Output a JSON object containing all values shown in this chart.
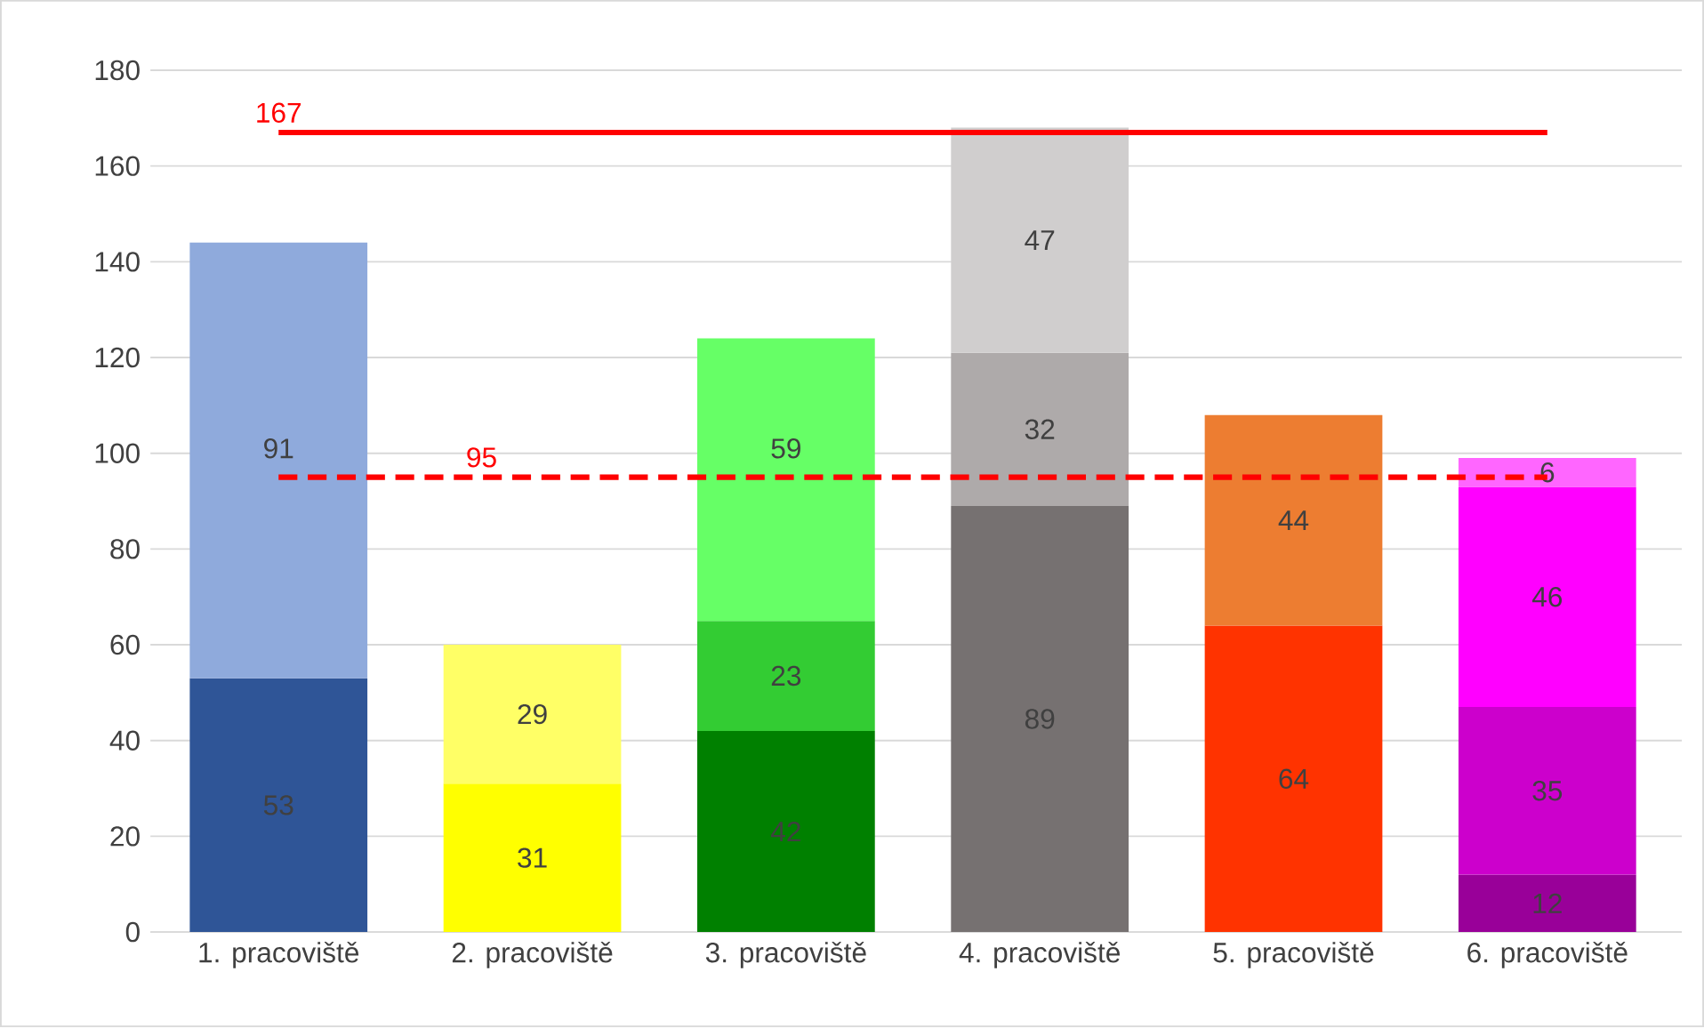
{
  "chart_data": {
    "type": "bar",
    "stacked": true,
    "categories": [
      "1. pracoviště",
      "2. pracoviště",
      "3. pracoviště",
      "4. pracoviště",
      "5. pracoviště",
      "6. pracoviště"
    ],
    "series": [
      {
        "values": [
          53,
          31,
          42,
          89,
          64,
          12
        ],
        "colors": [
          "#2f5597",
          "#ffff00",
          "#008000",
          "#767171",
          "#ff3300",
          "#990099"
        ]
      },
      {
        "values": [
          91,
          29,
          23,
          32,
          44,
          35
        ],
        "colors": [
          "#8faadc",
          "#ffff66",
          "#33cc33",
          "#aeaaaa",
          "#ed7d31",
          "#cc00cc"
        ]
      },
      {
        "values": [
          null,
          null,
          59,
          47,
          null,
          46
        ],
        "colors": [
          null,
          null,
          "#66ff66",
          "#d0cece",
          null,
          "#ff00ff"
        ]
      },
      {
        "values": [
          null,
          null,
          null,
          null,
          null,
          6
        ],
        "colors": [
          null,
          null,
          null,
          null,
          null,
          "#ff66ff"
        ]
      }
    ],
    "ylim": [
      0,
      180
    ],
    "yticks": [
      0,
      20,
      40,
      60,
      80,
      100,
      120,
      140,
      160,
      180
    ],
    "grid": "y",
    "data_labels": true,
    "ref_lines": [
      {
        "axis": "y",
        "value": 167,
        "label": "167",
        "color": "#ff0000",
        "line_style": "solid"
      },
      {
        "axis": "y",
        "value": 95,
        "label": "95",
        "color": "#ff0000",
        "line_style": "dashed"
      }
    ]
  }
}
